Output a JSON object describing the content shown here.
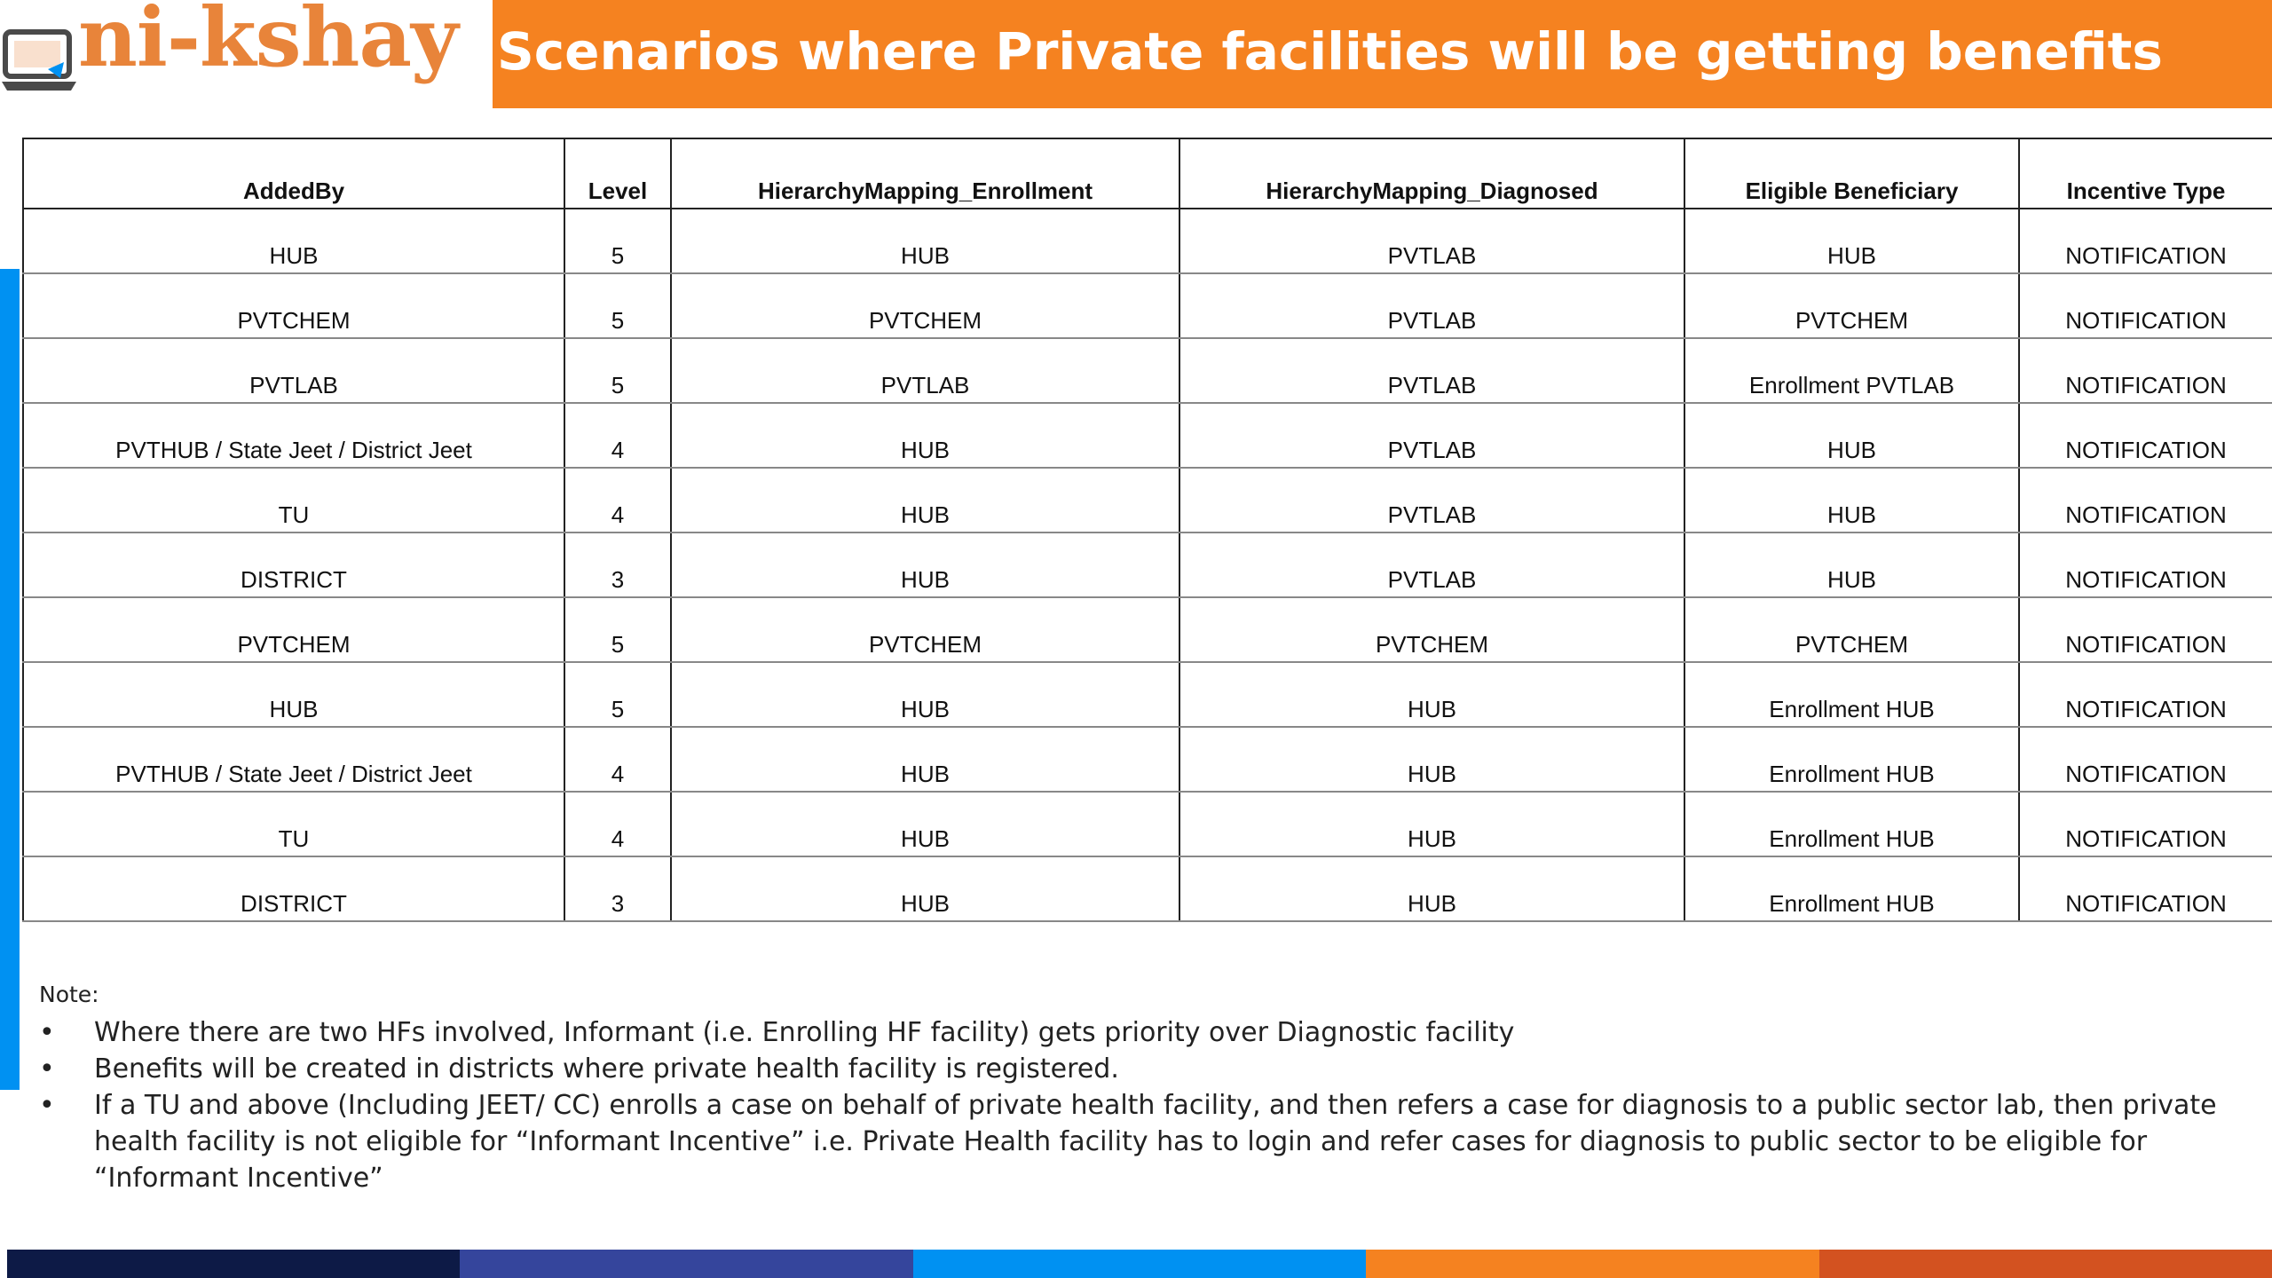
{
  "header": {
    "logo_text": "ni-kshay",
    "title": "Scenarios where Private facilities will be getting benefits"
  },
  "colors": {
    "title_bar": "#f58220",
    "logo_text": "#e8843a",
    "left_stripe": "#0091f2",
    "bottom_bar": [
      "#0d1a46",
      "#35459c",
      "#0091f2",
      "#f58220",
      "#d35220"
    ]
  },
  "table": {
    "headers": [
      "AddedBy",
      "Level",
      "HierarchyMapping_Enrollment",
      "HierarchyMapping_Diagnosed",
      "Eligible Beneficiary",
      "Incentive Type"
    ],
    "rows": [
      [
        "HUB",
        "5",
        "HUB",
        "PVTLAB",
        "HUB",
        "NOTIFICATION"
      ],
      [
        "PVTCHEM",
        "5",
        "PVTCHEM",
        "PVTLAB",
        "PVTCHEM",
        "NOTIFICATION"
      ],
      [
        "PVTLAB",
        "5",
        "PVTLAB",
        "PVTLAB",
        "Enrollment PVTLAB",
        "NOTIFICATION"
      ],
      [
        "PVTHUB / State Jeet / District Jeet",
        "4",
        "HUB",
        "PVTLAB",
        "HUB",
        "NOTIFICATION"
      ],
      [
        "TU",
        "4",
        "HUB",
        "PVTLAB",
        "HUB",
        "NOTIFICATION"
      ],
      [
        "DISTRICT",
        "3",
        "HUB",
        "PVTLAB",
        "HUB",
        "NOTIFICATION"
      ],
      [
        "PVTCHEM",
        "5",
        "PVTCHEM",
        "PVTCHEM",
        "PVTCHEM",
        "NOTIFICATION"
      ],
      [
        "HUB",
        "5",
        "HUB",
        "HUB",
        "Enrollment HUB",
        "NOTIFICATION"
      ],
      [
        "PVTHUB / State Jeet / District Jeet",
        "4",
        "HUB",
        "HUB",
        "Enrollment HUB",
        "NOTIFICATION"
      ],
      [
        "TU",
        "4",
        "HUB",
        "HUB",
        "Enrollment HUB",
        "NOTIFICATION"
      ],
      [
        "DISTRICT",
        "3",
        "HUB",
        "HUB",
        "Enrollment HUB",
        "NOTIFICATION"
      ]
    ]
  },
  "notes": {
    "label": "Note:",
    "bullet": "•",
    "items": [
      "Where there are two HFs involved, Informant (i.e. Enrolling HF facility) gets priority over Diagnostic facility",
      "Benefits will be created in districts where private health facility is registered.",
      "If a TU and above (Including JEET/ CC) enrolls a case on behalf of private health facility, and then refers a case for diagnosis to a public sector lab, then private health facility is not eligible for “Informant Incentive” i.e. Private Health facility has to login and refer cases for diagnosis to public sector to be eligible for “Informant Incentive”"
    ]
  }
}
